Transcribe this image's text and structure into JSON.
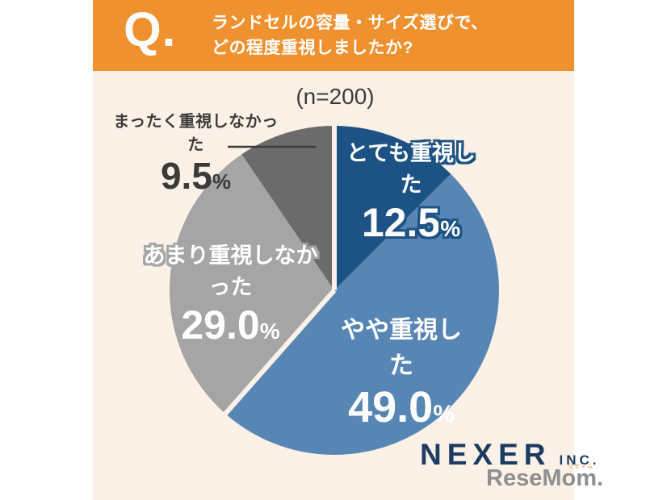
{
  "header": {
    "q_mark": "Q.",
    "question_line1": "ランドセルの容量・サイズ選びで、",
    "question_line2": "どの程度重視しましたか?",
    "bg_color": "#F0912F"
  },
  "chart_data": {
    "type": "pie",
    "title": "ランドセルの容量・サイズ選びで、どの程度重視しましたか?",
    "n_label": "(n=200)",
    "n": 200,
    "start_angle_deg": 0,
    "clockwise": true,
    "percent_sign": "%",
    "slices": [
      {
        "label": "とても重視した",
        "value": 12.5,
        "display": "12.5",
        "color": "#1D5384"
      },
      {
        "label": "やや重視した",
        "value": 49.0,
        "display": "49.0",
        "color": "#5886B4"
      },
      {
        "label": "あまり重視しなかった",
        "value": 29.0,
        "display": "29.0",
        "color": "#A5A5A5"
      },
      {
        "label": "まったく重視しなかった",
        "value": 9.5,
        "display": "9.5",
        "color": "#6B6B6B"
      }
    ],
    "separator_boundaries": [
      0,
      2
    ],
    "separator_color": "#FBF1E7",
    "legend": "none",
    "background_color": "#FBF1E7"
  },
  "footer": {
    "brand": "NEXER",
    "brand_suffix": "INC.",
    "watermark": "ReseMom.",
    "watermark_ruby": "リセマム"
  }
}
